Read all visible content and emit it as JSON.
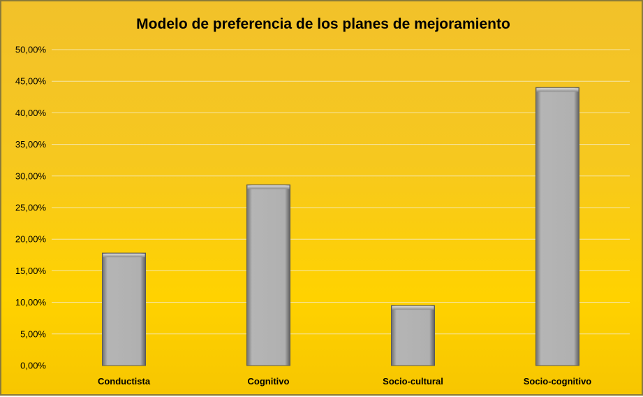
{
  "chart_data": {
    "type": "bar",
    "title": "Modelo de preferencia de los planes de mejoramiento",
    "xlabel": "",
    "ylabel": "",
    "categories": [
      "Conductista",
      "Cognitivo",
      "Socio-cultural",
      "Socio-cognitivo"
    ],
    "values": [
      17.8,
      28.6,
      9.5,
      44.0
    ],
    "ylim": [
      0,
      50
    ],
    "yticks": [
      "0,00%",
      "5,00%",
      "10,00%",
      "15,00%",
      "20,00%",
      "25,00%",
      "30,00%",
      "35,00%",
      "40,00%",
      "45,00%",
      "50,00%"
    ],
    "grid": true,
    "legend": "none",
    "colors": {
      "bar": "#b0b0b0",
      "background": "#f6c81f",
      "gridline": "#f5e6a8"
    }
  }
}
